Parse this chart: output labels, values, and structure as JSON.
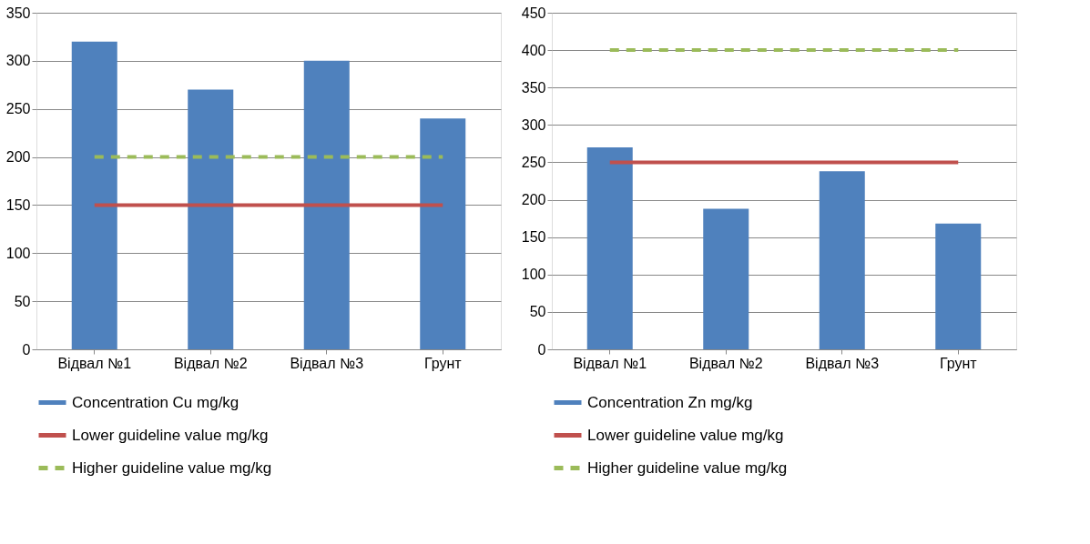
{
  "chart_data": [
    {
      "type": "bar",
      "categories": [
        "Відвал №1",
        "Відвал №2",
        "Відвал №3",
        "Грунт"
      ],
      "ylim": [
        0,
        350
      ],
      "yticks": [
        0,
        50,
        100,
        150,
        200,
        250,
        300,
        350
      ],
      "grid": "y",
      "legend": "bottom",
      "series": [
        {
          "name": "Concentration Cu mg/kg",
          "color": "#4f81bd",
          "values": [
            320,
            270,
            300,
            240
          ]
        },
        {
          "name": "Lower guideline value mg/kg",
          "type": "line",
          "color": "#c0504d",
          "line_style": "solid",
          "values": [
            150,
            150,
            150,
            150
          ]
        },
        {
          "name": "Higher  guideline value mg/kg",
          "type": "line",
          "color": "#9bbb59",
          "line_style": "dashed",
          "values": [
            200,
            200,
            200,
            200
          ]
        }
      ]
    },
    {
      "type": "bar",
      "categories": [
        "Відвал №1",
        "Відвал №2",
        "Відвал №3",
        "Грунт"
      ],
      "ylim": [
        0,
        450
      ],
      "yticks": [
        0,
        50,
        100,
        150,
        200,
        250,
        300,
        350,
        400,
        450
      ],
      "grid": "y",
      "legend": "bottom",
      "series": [
        {
          "name": "Concentration Zn mg/kg",
          "color": "#4f81bd",
          "values": [
            270,
            188,
            238,
            168
          ]
        },
        {
          "name": "Lower guideline value mg/kg",
          "type": "line",
          "color": "#c0504d",
          "line_style": "solid",
          "values": [
            250,
            250,
            250,
            250
          ]
        },
        {
          "name": "Higher  guideline value mg/kg",
          "type": "line",
          "color": "#9bbb59",
          "line_style": "dashed",
          "values": [
            400,
            400,
            400,
            400
          ]
        }
      ]
    }
  ]
}
